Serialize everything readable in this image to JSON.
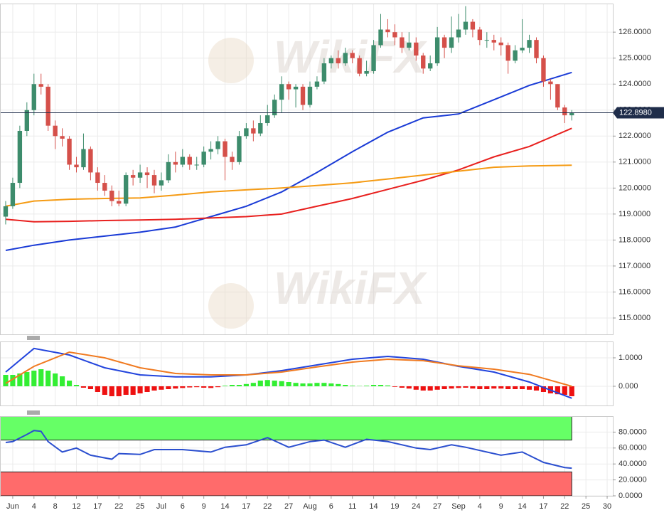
{
  "chart_data": [
    {
      "type": "candlestick",
      "watermark": "WikiFX",
      "x": [
        -1,
        0,
        1,
        2,
        3,
        4,
        5,
        6,
        7,
        8,
        9,
        10,
        11,
        12,
        13,
        14,
        15,
        16,
        17,
        18,
        19,
        20,
        21,
        22,
        23,
        24,
        25,
        26,
        27,
        28,
        29,
        30,
        31,
        32,
        33,
        34,
        35,
        36,
        37,
        38,
        39,
        40,
        41,
        42,
        43,
        44,
        45,
        46,
        47,
        48,
        49,
        50,
        51,
        52,
        53,
        54,
        55,
        56,
        57,
        58,
        59,
        60,
        61,
        62,
        63,
        64,
        65,
        66,
        67,
        68,
        69,
        70,
        71,
        72,
        73,
        74,
        75,
        76,
        77,
        78,
        79
      ],
      "open": [
        118.9,
        119.3,
        120.2,
        122.2,
        123.0,
        124.0,
        123.9,
        122.4,
        122.0,
        121.9,
        120.9,
        120.8,
        121.5,
        120.6,
        120.2,
        119.9,
        119.5,
        119.4,
        120.5,
        120.4,
        120.6,
        120.5,
        120.1,
        120.3,
        121.0,
        120.9,
        121.2,
        120.9,
        120.9,
        121.4,
        121.5,
        121.8,
        121.2,
        121.0,
        122.0,
        122.3,
        122.1,
        122.5,
        122.8,
        123.4,
        124.0,
        123.8,
        123.9,
        123.2,
        123.9,
        124.1,
        124.8,
        125.0,
        124.8,
        125.2,
        125.0,
        124.4,
        124.5,
        125.5,
        126.1,
        126.0,
        125.8,
        125.4,
        125.6,
        125.1,
        124.6,
        124.8,
        125.8,
        125.4,
        125.8,
        126.1,
        126.4,
        126.1,
        125.7,
        125.7,
        125.6,
        125.5,
        124.9,
        125.3,
        125.4,
        125.7,
        125.0,
        124.1,
        124.0,
        123.1,
        122.8
      ],
      "high": [
        119.5,
        120.4,
        122.4,
        123.3,
        124.4,
        124.4,
        124.0,
        122.6,
        122.3,
        122.0,
        121.2,
        122.1,
        121.6,
        120.8,
        120.5,
        120.1,
        119.9,
        120.6,
        120.7,
        120.9,
        120.8,
        120.7,
        120.6,
        121.3,
        121.4,
        121.5,
        121.3,
        121.2,
        121.6,
        121.8,
        122.0,
        121.9,
        121.4,
        122.2,
        122.5,
        122.6,
        122.8,
        123.2,
        123.6,
        124.3,
        124.1,
        124.0,
        124.0,
        124.1,
        124.3,
        125.0,
        125.1,
        125.3,
        125.4,
        125.3,
        125.1,
        124.9,
        125.7,
        126.7,
        126.5,
        126.3,
        126.0,
        126.0,
        125.8,
        125.2,
        125.1,
        126.2,
        125.9,
        126.6,
        126.7,
        127.0,
        126.5,
        126.2,
        126.0,
        125.9,
        125.8,
        125.6,
        125.5,
        126.5,
        125.9,
        125.8,
        125.1,
        124.2,
        124.0,
        123.2,
        123.0
      ],
      "low": [
        118.6,
        119.2,
        120.0,
        122.0,
        122.8,
        123.6,
        122.2,
        121.5,
        121.6,
        120.7,
        120.6,
        120.7,
        120.3,
        119.9,
        119.7,
        119.3,
        119.3,
        119.3,
        120.1,
        120.2,
        120.0,
        119.8,
        119.9,
        120.2,
        120.6,
        120.8,
        120.7,
        120.7,
        120.8,
        121.1,
        121.3,
        120.3,
        120.7,
        120.9,
        121.9,
        121.8,
        122.0,
        122.4,
        122.7,
        122.9,
        123.4,
        123.1,
        123.0,
        123.1,
        123.8,
        124.0,
        124.6,
        124.6,
        124.7,
        124.8,
        124.3,
        124.3,
        124.4,
        125.4,
        125.8,
        125.5,
        125.2,
        125.3,
        124.9,
        124.4,
        124.5,
        124.7,
        125.0,
        125.2,
        125.6,
        125.9,
        125.8,
        125.5,
        125.4,
        125.3,
        125.1,
        124.4,
        124.8,
        125.2,
        125.2,
        124.8,
        123.9,
        123.4,
        123.0,
        122.5,
        122.6
      ],
      "close": [
        119.3,
        120.2,
        122.2,
        123.0,
        124.0,
        123.9,
        122.4,
        122.0,
        121.9,
        120.9,
        120.8,
        121.5,
        120.6,
        120.2,
        119.9,
        119.5,
        119.4,
        120.5,
        120.4,
        120.6,
        120.5,
        120.1,
        120.3,
        121.0,
        120.9,
        121.2,
        120.9,
        120.9,
        121.4,
        121.5,
        121.8,
        121.2,
        121.0,
        122.0,
        122.3,
        122.1,
        122.5,
        122.8,
        123.4,
        124.0,
        123.8,
        123.9,
        123.2,
        123.9,
        124.1,
        124.8,
        125.0,
        124.8,
        125.2,
        125.0,
        124.4,
        124.5,
        125.5,
        126.1,
        126.0,
        125.8,
        125.4,
        125.6,
        125.1,
        124.6,
        124.8,
        125.8,
        125.4,
        125.8,
        126.1,
        126.4,
        126.1,
        125.7,
        125.7,
        125.6,
        125.5,
        124.9,
        125.3,
        125.4,
        125.7,
        125.0,
        124.1,
        124.0,
        123.1,
        122.8,
        122.9
      ],
      "up_color": "#3d8c6c",
      "down_color": "#d5504a",
      "lines": [
        {
          "color": "#1a3bd6",
          "x": [
            -1,
            3,
            8,
            13,
            18,
            23,
            28,
            33,
            38,
            43,
            48,
            53,
            58,
            63,
            68,
            73,
            79
          ],
          "values": [
            117.6,
            117.8,
            118.0,
            118.15,
            118.3,
            118.5,
            118.9,
            119.3,
            119.85,
            120.6,
            121.4,
            122.15,
            122.7,
            122.85,
            123.4,
            123.95,
            124.45
          ]
        },
        {
          "color": "#e8201e",
          "x": [
            -1,
            3,
            8,
            13,
            18,
            23,
            28,
            33,
            38,
            43,
            48,
            53,
            58,
            63,
            68,
            73,
            79
          ],
          "values": [
            118.8,
            118.7,
            118.72,
            118.75,
            118.77,
            118.8,
            118.85,
            118.9,
            119.0,
            119.3,
            119.6,
            119.95,
            120.3,
            120.7,
            121.2,
            121.6,
            122.3
          ]
        },
        {
          "color": "#f59b14",
          "x": [
            -1,
            3,
            8,
            13,
            18,
            23,
            28,
            33,
            38,
            43,
            48,
            53,
            58,
            63,
            68,
            73,
            79
          ],
          "values": [
            119.3,
            119.5,
            119.57,
            119.6,
            119.62,
            119.73,
            119.85,
            119.93,
            120.0,
            120.1,
            120.2,
            120.35,
            120.5,
            120.65,
            120.8,
            120.85,
            120.88
          ]
        }
      ],
      "last_price": {
        "value": 122.898,
        "label": "122.8980"
      },
      "price_line_color": "#1f2d4a",
      "ylim": [
        114.37,
        127.1
      ],
      "yticks": [
        {
          "value": 115,
          "label": "115.0000"
        },
        {
          "value": 116,
          "label": "116.0000"
        },
        {
          "value": 117,
          "label": "117.0000"
        },
        {
          "value": 118,
          "label": "118.0000"
        },
        {
          "value": 119,
          "label": "119.0000"
        },
        {
          "value": 120,
          "label": "120.0000"
        },
        {
          "value": 121,
          "label": "121.0000"
        },
        {
          "value": 122,
          "label": "122.0000"
        },
        {
          "value": 123,
          "label": "123.0000"
        },
        {
          "value": 124,
          "label": "124.0000"
        },
        {
          "value": 125,
          "label": "125.0000"
        },
        {
          "value": 126,
          "label": "126.0000"
        }
      ],
      "grid": true
    },
    {
      "type": "macd",
      "histogram": [
        0.4,
        0.4,
        0.45,
        0.5,
        0.55,
        0.6,
        0.55,
        0.45,
        0.35,
        0.2,
        0.05,
        -0.05,
        -0.1,
        -0.2,
        -0.3,
        -0.35,
        -0.35,
        -0.3,
        -0.3,
        -0.25,
        -0.2,
        -0.15,
        -0.12,
        -0.1,
        -0.08,
        -0.06,
        -0.04,
        -0.03,
        -0.05,
        -0.06,
        -0.03,
        0.02,
        0.05,
        0.05,
        0.08,
        0.12,
        0.2,
        0.22,
        0.2,
        0.18,
        0.15,
        0.12,
        0.1,
        0.1,
        0.12,
        0.12,
        0.1,
        0.08,
        0.05,
        0.02,
        0.01,
        0.02,
        0.05,
        0.05,
        0.03,
        -0.02,
        -0.05,
        -0.08,
        -0.12,
        -0.15,
        -0.15,
        -0.12,
        -0.1,
        -0.08,
        -0.06,
        -0.05,
        -0.08,
        -0.1,
        -0.1,
        -0.08,
        -0.08,
        -0.1,
        -0.1,
        -0.1,
        -0.12,
        -0.15,
        -0.2,
        -0.25,
        -0.28,
        -0.3,
        -0.35
      ],
      "positive_color": "#33ee33",
      "negative_color": "#ee1111",
      "lines": [
        {
          "color": "#2244dd",
          "x": [
            -1,
            3,
            8,
            13,
            18,
            23,
            28,
            33,
            38,
            43,
            48,
            53,
            58,
            63,
            68,
            73,
            79
          ],
          "values": [
            0.5,
            1.33,
            1.1,
            0.65,
            0.4,
            0.33,
            0.33,
            0.4,
            0.55,
            0.75,
            0.95,
            1.05,
            0.95,
            0.7,
            0.5,
            0.15,
            -0.42
          ]
        },
        {
          "color": "#f07a20",
          "x": [
            -1,
            3,
            8,
            13,
            18,
            23,
            28,
            33,
            38,
            43,
            48,
            53,
            58,
            63,
            68,
            73,
            79
          ],
          "values": [
            0.1,
            0.7,
            1.2,
            1.0,
            0.65,
            0.45,
            0.4,
            0.4,
            0.5,
            0.68,
            0.85,
            0.95,
            0.9,
            0.72,
            0.6,
            0.42,
            0.0
          ]
        }
      ],
      "ylim": [
        -0.675,
        1.575
      ],
      "yticks": [
        {
          "value": 1,
          "label": "1.0000"
        },
        {
          "value": 0,
          "label": "0.000"
        }
      ],
      "grid": true
    },
    {
      "type": "rsi",
      "lines": [
        {
          "color": "#2b4fcf",
          "x": [
            -1,
            0,
            2,
            3,
            4,
            5,
            7,
            9,
            11,
            14,
            15,
            18,
            20,
            24,
            28,
            30,
            33,
            36,
            39,
            42,
            44,
            47,
            50,
            53,
            57,
            59,
            62,
            64,
            69,
            72,
            75,
            78,
            79
          ],
          "values": [
            67,
            68,
            77,
            82,
            81,
            68,
            55,
            60,
            51,
            46,
            53,
            52,
            58,
            58,
            55,
            61,
            64,
            73,
            61,
            68,
            70,
            61,
            71,
            68,
            60,
            58,
            64,
            61,
            51,
            55,
            42,
            35.5,
            34.7
          ]
        }
      ],
      "zones": [
        {
          "from": 70,
          "to": 100,
          "color": "#66ff66"
        },
        {
          "from": 0,
          "to": 30,
          "color": "#ff6b6b"
        }
      ],
      "zone_end": 79,
      "ylim": [
        0,
        100
      ],
      "yticks": [
        {
          "value": 80,
          "label": "80.0000"
        },
        {
          "value": 60,
          "label": "60.0000"
        },
        {
          "value": 40,
          "label": "40.0000"
        },
        {
          "value": 20,
          "label": "20.0000"
        },
        {
          "value": 0,
          "label": "0.0000"
        }
      ],
      "xlim": [
        -1.8,
        84.8
      ],
      "xticks": [
        {
          "value": 0,
          "label": "Jun"
        },
        {
          "value": 3,
          "label": "4"
        },
        {
          "value": 6,
          "label": "8"
        },
        {
          "value": 9,
          "label": "12"
        },
        {
          "value": 12,
          "label": "17"
        },
        {
          "value": 15,
          "label": "22"
        },
        {
          "value": 18,
          "label": "25"
        },
        {
          "value": 21,
          "label": "Jul"
        },
        {
          "value": 24,
          "label": "6"
        },
        {
          "value": 27,
          "label": "9"
        },
        {
          "value": 30,
          "label": "14"
        },
        {
          "value": 33,
          "label": "17"
        },
        {
          "value": 36,
          "label": "22"
        },
        {
          "value": 39,
          "label": "27"
        },
        {
          "value": 42,
          "label": "Aug"
        },
        {
          "value": 45,
          "label": "6"
        },
        {
          "value": 48,
          "label": "11"
        },
        {
          "value": 51,
          "label": "14"
        },
        {
          "value": 54,
          "label": "19"
        },
        {
          "value": 57,
          "label": "24"
        },
        {
          "value": 60,
          "label": "27"
        },
        {
          "value": 63,
          "label": "Sep"
        },
        {
          "value": 66,
          "label": "4"
        },
        {
          "value": 69,
          "label": "9"
        },
        {
          "value": 72,
          "label": "14"
        },
        {
          "value": 75,
          "label": "17"
        },
        {
          "value": 78,
          "label": "22"
        },
        {
          "value": 81,
          "label": "25"
        },
        {
          "value": 84,
          "label": "30"
        }
      ],
      "grid": true
    }
  ]
}
